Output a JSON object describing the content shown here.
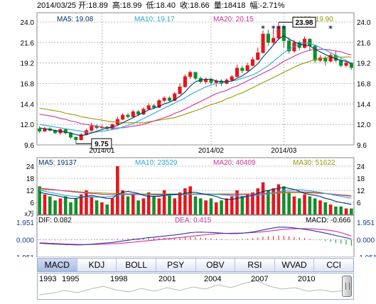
{
  "header": {
    "date": "2014/03/25",
    "open": "开:18.89",
    "high": "高:18.99",
    "low": "低:18.40",
    "close": "收:18.66",
    "volume": "量:18418",
    "change": "幅:-2.71%"
  },
  "price_legend": [
    {
      "label": "MA5: 19.08",
      "color": "#003366"
    },
    {
      "label": "MA10: 19.17",
      "color": "#2aa9d6"
    },
    {
      "label": "MA20: 20.15",
      "color": "#cc3399"
    },
    {
      "label": "MA30: 19.90",
      "color": "#999900"
    }
  ],
  "vol_legend": [
    {
      "label": "MA5: 19137",
      "color": "#003366"
    },
    {
      "label": "MA10: 23529",
      "color": "#2aa9d6"
    },
    {
      "label": "MA20: 40409",
      "color": "#cc3399"
    },
    {
      "label": "MA30: 51622",
      "color": "#999900"
    }
  ],
  "macd_legend": [
    {
      "label": "DIF: 0.082",
      "color": "#000000"
    },
    {
      "label": "DEA: 0.415",
      "color": "#cc3399"
    },
    {
      "label": "MACD: -0.666",
      "color": "#000000"
    }
  ],
  "annotations": {
    "max": "23.98",
    "min": "9.75"
  },
  "colors": {
    "up": "#e8141b",
    "down": "#0f8f2a",
    "grid": "#aaaaaa",
    "ma5": "#003366",
    "ma10": "#2aa9d6",
    "ma20": "#cc3399",
    "ma30": "#999900"
  },
  "tabs": [
    "MACD",
    "KDJ",
    "BOLL",
    "PSY",
    "OBV",
    "RSI",
    "WVAD",
    "CCI"
  ],
  "active_tab": "MACD",
  "timeline_years": [
    "1993",
    "1995",
    "1998",
    "2001",
    "2004",
    "2007",
    "2010"
  ],
  "chart_data": [
    {
      "type": "candlestick",
      "ylim": [
        9.6,
        24.0
      ],
      "yticks": [
        "24.0",
        "21.6",
        "19.2",
        "16.8",
        "14.4",
        "12.0",
        "9.6"
      ],
      "xticks": [
        "2014/01",
        "2014/02",
        "2014/03"
      ],
      "candles": [
        [
          11.5,
          11.2,
          11.8,
          11.0
        ],
        [
          11.2,
          11.5,
          11.7,
          11.1
        ],
        [
          11.5,
          11.3,
          11.7,
          11.2
        ],
        [
          11.3,
          11.0,
          11.4,
          10.9
        ],
        [
          11.0,
          11.4,
          11.6,
          10.8
        ],
        [
          11.4,
          11.0,
          11.5,
          10.8
        ],
        [
          11.0,
          10.5,
          11.1,
          10.3
        ],
        [
          10.5,
          10.2,
          10.6,
          9.75
        ],
        [
          10.2,
          10.8,
          11.0,
          10.1
        ],
        [
          10.8,
          11.3,
          11.5,
          10.7
        ],
        [
          11.3,
          11.8,
          12.2,
          11.2
        ],
        [
          11.8,
          11.6,
          12.0,
          11.4
        ],
        [
          11.6,
          11.7,
          11.9,
          11.5
        ],
        [
          11.7,
          11.5,
          11.8,
          11.3
        ],
        [
          11.5,
          12.0,
          12.1,
          11.4
        ],
        [
          12.0,
          12.6,
          12.9,
          11.9
        ],
        [
          12.6,
          13.1,
          13.3,
          12.5
        ],
        [
          13.1,
          12.9,
          13.3,
          12.7
        ],
        [
          12.9,
          13.5,
          13.7,
          12.8
        ],
        [
          13.5,
          13.2,
          13.7,
          13.0
        ],
        [
          13.2,
          13.8,
          14.0,
          13.1
        ],
        [
          13.8,
          14.2,
          14.5,
          13.7
        ],
        [
          14.2,
          14.0,
          14.4,
          13.8
        ],
        [
          14.0,
          14.8,
          15.0,
          13.9
        ],
        [
          14.8,
          15.1,
          15.3,
          14.6
        ],
        [
          15.1,
          14.8,
          15.3,
          14.6
        ],
        [
          14.8,
          15.6,
          15.8,
          14.7
        ],
        [
          15.6,
          16.4,
          16.8,
          15.5
        ],
        [
          16.4,
          17.6,
          17.9,
          16.3
        ],
        [
          17.6,
          18.1,
          18.3,
          17.3
        ],
        [
          18.1,
          17.4,
          18.2,
          17.2
        ],
        [
          17.4,
          17.0,
          17.6,
          16.8
        ],
        [
          17.0,
          17.3,
          17.5,
          16.7
        ],
        [
          17.3,
          16.9,
          17.5,
          16.6
        ],
        [
          16.9,
          17.1,
          17.3,
          16.4
        ],
        [
          17.1,
          16.8,
          17.3,
          16.5
        ],
        [
          16.8,
          17.2,
          17.4,
          16.7
        ],
        [
          17.2,
          17.6,
          17.8,
          17.0
        ],
        [
          17.6,
          18.6,
          19.0,
          17.5
        ],
        [
          18.6,
          18.3,
          18.9,
          18.0
        ],
        [
          18.3,
          18.9,
          19.2,
          18.2
        ],
        [
          18.9,
          19.6,
          19.9,
          18.8
        ],
        [
          19.6,
          20.4,
          21.0,
          19.5
        ],
        [
          20.4,
          22.6,
          23.0,
          20.3
        ],
        [
          22.6,
          21.6,
          23.1,
          21.2
        ],
        [
          21.6,
          22.1,
          23.2,
          21.3
        ],
        [
          22.1,
          23.5,
          23.98,
          21.9
        ],
        [
          23.5,
          21.8,
          23.6,
          21.0
        ],
        [
          21.8,
          20.6,
          22.2,
          20.3
        ],
        [
          20.6,
          21.6,
          21.9,
          20.4
        ],
        [
          21.6,
          21.0,
          21.8,
          20.7
        ],
        [
          21.0,
          22.0,
          22.3,
          20.9
        ],
        [
          22.0,
          21.2,
          22.1,
          20.6
        ],
        [
          21.2,
          19.5,
          21.3,
          19.2
        ],
        [
          19.5,
          19.8,
          20.1,
          19.3
        ],
        [
          19.8,
          19.4,
          20.0,
          18.9
        ],
        [
          19.4,
          20.1,
          20.4,
          19.3
        ],
        [
          20.1,
          19.5,
          20.6,
          19.3
        ],
        [
          19.5,
          18.9,
          19.7,
          18.7
        ],
        [
          18.9,
          19.2,
          19.5,
          18.7
        ],
        [
          19.2,
          18.66,
          19.3,
          18.4
        ]
      ],
      "ma5": [
        11.6,
        11.5,
        11.4,
        11.3,
        11.2,
        11.1,
        11.0,
        10.8,
        10.7,
        10.8,
        11.0,
        11.2,
        11.4,
        11.6,
        11.7,
        11.9,
        12.2,
        12.5,
        12.8,
        13.1,
        13.4,
        13.7,
        13.9,
        14.1,
        14.4,
        14.6,
        14.9,
        15.3,
        15.8,
        16.5,
        17.0,
        17.2,
        17.3,
        17.3,
        17.1,
        17.0,
        17.0,
        17.1,
        17.4,
        17.7,
        18.1,
        18.6,
        19.1,
        19.9,
        20.6,
        21.3,
        22.0,
        22.4,
        22.0,
        21.7,
        21.4,
        21.3,
        21.2,
        20.8,
        20.5,
        20.2,
        19.9,
        19.7,
        19.5,
        19.4,
        19.08
      ],
      "ma10": [
        12.0,
        11.9,
        11.8,
        11.7,
        11.6,
        11.5,
        11.4,
        11.3,
        11.2,
        11.1,
        11.1,
        11.1,
        11.2,
        11.3,
        11.4,
        11.5,
        11.7,
        11.9,
        12.1,
        12.4,
        12.7,
        13.0,
        13.3,
        13.6,
        13.9,
        14.2,
        14.5,
        14.8,
        15.1,
        15.5,
        15.8,
        16.1,
        16.4,
        16.6,
        16.8,
        16.9,
        17.0,
        17.1,
        17.2,
        17.4,
        17.6,
        17.8,
        18.1,
        18.5,
        18.9,
        19.4,
        19.9,
        20.4,
        20.8,
        21.1,
        21.4,
        21.5,
        21.5,
        21.3,
        21.0,
        20.7,
        20.4,
        20.1,
        19.8,
        19.5,
        19.17
      ],
      "ma20": [
        13.2,
        13.1,
        13.0,
        12.9,
        12.7,
        12.6,
        12.4,
        12.3,
        12.1,
        12.0,
        11.9,
        11.8,
        11.7,
        11.6,
        11.6,
        11.6,
        11.6,
        11.7,
        11.8,
        11.9,
        12.0,
        12.2,
        12.4,
        12.6,
        12.8,
        13.0,
        13.3,
        13.5,
        13.8,
        14.1,
        14.4,
        14.7,
        15.0,
        15.3,
        15.6,
        15.8,
        16.0,
        16.3,
        16.5,
        16.8,
        17.1,
        17.4,
        17.7,
        18.0,
        18.3,
        18.6,
        19.0,
        19.4,
        19.7,
        20.0,
        20.3,
        20.5,
        20.7,
        20.8,
        20.8,
        20.8,
        20.7,
        20.6,
        20.5,
        20.3,
        20.15
      ],
      "ma30": [
        13.9,
        13.8,
        13.7,
        13.6,
        13.5,
        13.3,
        13.2,
        13.1,
        12.9,
        12.8,
        12.7,
        12.6,
        12.5,
        12.4,
        12.3,
        12.3,
        12.2,
        12.2,
        12.2,
        12.2,
        12.2,
        12.3,
        12.4,
        12.5,
        12.6,
        12.7,
        12.8,
        13.0,
        13.2,
        13.4,
        13.6,
        13.8,
        14.1,
        14.3,
        14.5,
        14.7,
        15.0,
        15.2,
        15.5,
        15.7,
        16.0,
        16.3,
        16.6,
        16.9,
        17.2,
        17.5,
        17.8,
        18.1,
        18.4,
        18.7,
        19.0,
        19.2,
        19.4,
        19.6,
        19.7,
        19.8,
        19.9,
        19.9,
        19.9,
        19.9,
        19.9
      ]
    },
    {
      "type": "bar",
      "ylim": [
        0,
        24
      ],
      "yticks": [
        "24",
        "18",
        "12",
        "6"
      ],
      "unit": "x万",
      "values": [
        14,
        10,
        9,
        7,
        8,
        9,
        6,
        8,
        10,
        12,
        9,
        7,
        6,
        5,
        8,
        24,
        12,
        9,
        10,
        7,
        8,
        11,
        9,
        8,
        12,
        10,
        8,
        11,
        13,
        14,
        9,
        8,
        7,
        8,
        6,
        7,
        8,
        9,
        12,
        9,
        10,
        11,
        13,
        16,
        12,
        13,
        15,
        14,
        11,
        9,
        8,
        10,
        9,
        8,
        7,
        6,
        5,
        4,
        4,
        3,
        3
      ],
      "ma5": [
        11,
        10.5,
        10,
        9.5,
        9,
        8.5,
        8,
        8,
        8.5,
        9,
        9.5,
        9,
        8.5,
        8,
        8,
        10,
        11,
        11.5,
        11,
        10.5,
        9.5,
        9,
        9,
        9,
        9.5,
        10,
        10,
        10,
        10.5,
        11,
        11,
        10.5,
        10,
        9.5,
        9,
        8,
        7.5,
        7.5,
        8,
        8.5,
        9,
        9.5,
        10.5,
        11.5,
        12,
        12.5,
        13,
        13.5,
        13,
        12.5,
        11.5,
        10.5,
        10,
        9.5,
        9,
        8,
        7.5,
        6.5,
        6,
        5.5,
        5
      ],
      "ma10": [
        12,
        11.5,
        11,
        10.5,
        10,
        9.5,
        9.2,
        9,
        8.8,
        8.7,
        8.7,
        8.7,
        8.7,
        8.8,
        9,
        9.5,
        10,
        10.2,
        10.2,
        10.1,
        10,
        9.8,
        9.6,
        9.5,
        9.5,
        9.6,
        9.7,
        9.8,
        9.9,
        10,
        10.1,
        10.2,
        10.2,
        10.1,
        10,
        9.8,
        9.6,
        9.4,
        9.2,
        9.1,
        9.1,
        9.2,
        9.5,
        9.9,
        10.3,
        10.8,
        11.3,
        11.8,
        12.1,
        12.3,
        12.3,
        12.1,
        11.8,
        11.4,
        11,
        10.5,
        10,
        9.5,
        9,
        8.5,
        8
      ],
      "ma20": [
        13,
        12.8,
        12.6,
        12.3,
        12,
        11.7,
        11.4,
        11.1,
        10.9,
        10.7,
        10.5,
        10.3,
        10.1,
        10,
        9.9,
        9.9,
        9.9,
        9.9,
        9.9,
        9.9,
        9.9,
        9.9,
        9.9,
        9.9,
        9.9,
        9.9,
        9.9,
        9.9,
        9.9,
        10,
        10,
        10,
        10,
        10,
        10,
        10,
        10,
        10,
        10,
        10,
        10,
        10.1,
        10.2,
        10.4,
        10.6,
        10.8,
        11,
        11.2,
        11.3,
        11.3,
        11.3,
        11.2,
        11.1,
        10.9,
        10.7,
        10.5,
        10.2,
        9.9,
        9.6,
        9.3,
        9
      ],
      "ma30": [
        12.5,
        12.4,
        12.3,
        12.2,
        12,
        11.8,
        11.6,
        11.4,
        11.2,
        11,
        10.9,
        10.8,
        10.7,
        10.6,
        10.5,
        10.4,
        10.4,
        10.3,
        10.3,
        10.2,
        10.2,
        10.2,
        10.2,
        10.2,
        10.2,
        10.2,
        10.2,
        10.2,
        10.2,
        10.2,
        10.2,
        10.2,
        10.2,
        10.2,
        10.2,
        10.2,
        10.2,
        10.2,
        10.2,
        10.2,
        10.2,
        10.2,
        10.2,
        10.3,
        10.4,
        10.5,
        10.6,
        10.7,
        10.8,
        10.8,
        10.8,
        10.8,
        10.7,
        10.6,
        10.5,
        10.4,
        10.2,
        10,
        9.8,
        9.6,
        9.4
      ]
    },
    {
      "type": "macd",
      "ylim": [
        -1.951,
        1.951
      ],
      "yticks": [
        "1.951",
        "0.000",
        "-1.951"
      ],
      "hist": [
        -0.05,
        -0.06,
        -0.06,
        -0.07,
        -0.07,
        -0.06,
        -0.06,
        -0.04,
        -0.02,
        0.01,
        0.03,
        0.05,
        0.06,
        0.07,
        0.08,
        0.1,
        0.12,
        0.14,
        0.15,
        0.16,
        0.17,
        0.18,
        0.19,
        0.2,
        0.21,
        0.22,
        0.23,
        0.25,
        0.27,
        0.28,
        0.27,
        0.24,
        0.2,
        0.16,
        0.12,
        0.08,
        0.05,
        0.04,
        0.06,
        0.09,
        0.13,
        0.18,
        0.25,
        0.33,
        0.38,
        0.42,
        0.46,
        0.44,
        0.38,
        0.32,
        0.25,
        0.18,
        0.1,
        0.02,
        -0.06,
        -0.15,
        -0.25,
        -0.35,
        -0.45,
        -0.55,
        -0.666
      ],
      "dif": [
        -0.4,
        -0.43,
        -0.46,
        -0.49,
        -0.52,
        -0.54,
        -0.56,
        -0.58,
        -0.57,
        -0.54,
        -0.5,
        -0.45,
        -0.4,
        -0.35,
        -0.3,
        -0.22,
        -0.14,
        -0.06,
        0.02,
        0.09,
        0.16,
        0.23,
        0.29,
        0.35,
        0.41,
        0.47,
        0.53,
        0.61,
        0.7,
        0.79,
        0.84,
        0.85,
        0.84,
        0.81,
        0.78,
        0.74,
        0.7,
        0.68,
        0.69,
        0.73,
        0.79,
        0.87,
        0.97,
        1.1,
        1.22,
        1.32,
        1.4,
        1.42,
        1.38,
        1.32,
        1.25,
        1.17,
        1.08,
        0.97,
        0.86,
        0.74,
        0.61,
        0.48,
        0.35,
        0.22,
        0.082
      ],
      "dea": [
        -0.35,
        -0.37,
        -0.4,
        -0.42,
        -0.45,
        -0.48,
        -0.5,
        -0.52,
        -0.53,
        -0.54,
        -0.53,
        -0.52,
        -0.5,
        -0.48,
        -0.45,
        -0.42,
        -0.38,
        -0.33,
        -0.28,
        -0.22,
        -0.16,
        -0.1,
        -0.05,
        0.01,
        0.07,
        0.13,
        0.18,
        0.24,
        0.3,
        0.37,
        0.43,
        0.5,
        0.56,
        0.61,
        0.66,
        0.7,
        0.72,
        0.73,
        0.74,
        0.75,
        0.77,
        0.8,
        0.84,
        0.89,
        0.96,
        1.03,
        1.1,
        1.17,
        1.21,
        1.23,
        1.24,
        1.24,
        1.23,
        1.2,
        1.16,
        1.11,
        1.04,
        0.94,
        0.8,
        0.62,
        0.415
      ]
    }
  ]
}
